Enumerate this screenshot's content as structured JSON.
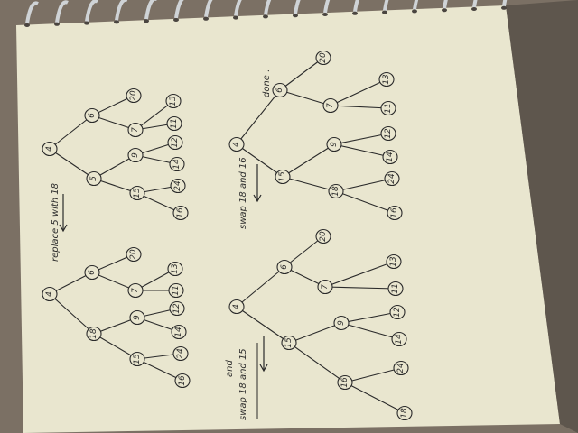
{
  "colors": {
    "paper": "#e9e6cf",
    "ink": "#2a2a2a",
    "table": "#7b7064",
    "spiral": "#cfd3d6"
  },
  "notes": {
    "replace": "replace 5 with 18",
    "swap1_and": "and",
    "swap1_text": "swap 18 and 15",
    "swap2": "swap 18 and 16",
    "done": "done ."
  },
  "trees": [
    {
      "name": "tree-1",
      "nodes": [
        "4",
        "6",
        "5",
        "20",
        "7",
        "13",
        "11",
        "9",
        "15",
        "12",
        "14",
        "24",
        "16"
      ]
    },
    {
      "name": "tree-2",
      "nodes": [
        "4",
        "6",
        "18",
        "20",
        "7",
        "13",
        "11",
        "9",
        "15",
        "12",
        "14",
        "24",
        "16"
      ]
    },
    {
      "name": "tree-3",
      "nodes": [
        "4",
        "6",
        "15",
        "20",
        "7",
        "13",
        "11",
        "9",
        "18",
        "12",
        "14",
        "24",
        "16"
      ]
    },
    {
      "name": "tree-4",
      "nodes": [
        "4",
        "6",
        "15",
        "20",
        "7",
        "13",
        "11",
        "9",
        "16",
        "12",
        "14",
        "24",
        "18"
      ]
    }
  ]
}
